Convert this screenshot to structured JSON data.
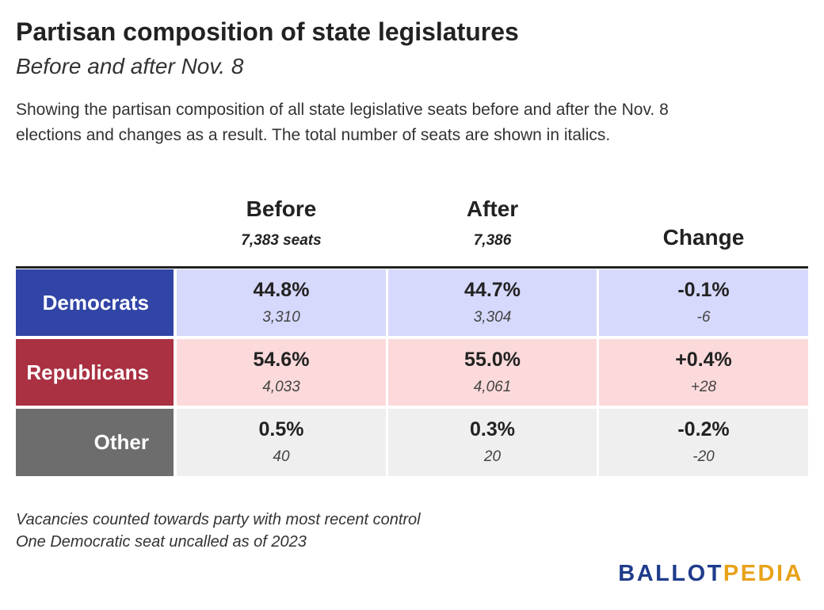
{
  "header": {
    "title": "Partisan composition of state legislatures",
    "subtitle": "Before and after Nov. 8",
    "description": [
      "Showing the partisan composition of all state legislative seats before and after the Nov. 8",
      "elections and changes as a result. The total number of seats are shown in italics."
    ]
  },
  "table": {
    "columns": [
      {
        "label": "Before",
        "sublabel": "7,383 seats"
      },
      {
        "label": "After",
        "sublabel": "7,386"
      },
      {
        "label": "Change"
      }
    ],
    "rows": [
      {
        "label": "Democrats",
        "cells": [
          {
            "value": "44.8%",
            "seats": "3,310"
          },
          {
            "value": "44.7%",
            "seats": "3,304"
          },
          {
            "value": "-0.1%",
            "seats": "-6"
          }
        ]
      },
      {
        "label": "Republicans",
        "cells": [
          {
            "value": "54.6%",
            "seats": "4,033"
          },
          {
            "value": "55.0%",
            "seats": "4,061"
          },
          {
            "value": "+0.4%",
            "seats": "+28"
          }
        ]
      },
      {
        "label": "Other",
        "cells": [
          {
            "value": "0.5%",
            "seats": "40"
          },
          {
            "value": "0.3%",
            "seats": "20"
          },
          {
            "value": "-0.2%",
            "seats": "-20"
          }
        ]
      }
    ]
  },
  "footnotes": [
    "Vacancies counted towards party with most recent control",
    "One Democratic seat uncalled as of 2023"
  ],
  "logo": {
    "first": "BALLOT",
    "second": "PEDIA"
  }
}
